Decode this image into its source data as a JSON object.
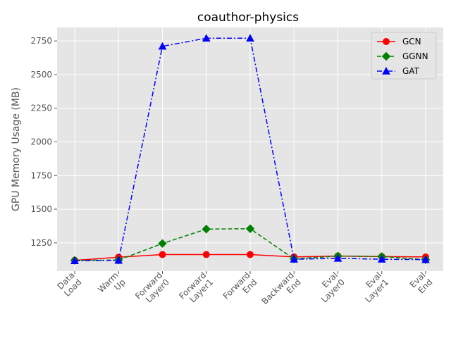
{
  "chart_data": {
    "type": "line",
    "title": "coauthor-physics",
    "xlabel": "",
    "ylabel": "GPU Memory Usage (MB)",
    "categories": [
      [
        "Data",
        "Load"
      ],
      [
        "Warm",
        "Up"
      ],
      [
        "Forward",
        "Layer0"
      ],
      [
        "Forward",
        "Layer1"
      ],
      [
        "Forward",
        "End"
      ],
      [
        "Backward",
        "End"
      ],
      [
        "Eval",
        "Layer0"
      ],
      [
        "Eval",
        "Layer1"
      ],
      [
        "Eval",
        "End"
      ]
    ],
    "ylim": [
      1040,
      2850
    ],
    "yticks": [
      1250,
      1500,
      1750,
      2000,
      2250,
      2500,
      2750
    ],
    "grid": true,
    "legend_position": "top-right",
    "series": [
      {
        "name": "GCN",
        "color": "#ff0000",
        "dash": "solid",
        "marker": "circle",
        "values": [
          1120,
          1143,
          1163,
          1163,
          1163,
          1145,
          1152,
          1148,
          1145
        ]
      },
      {
        "name": "GGNN",
        "color": "#008000",
        "dash": "dashed",
        "marker": "diamond",
        "values": [
          1120,
          1122,
          1245,
          1352,
          1355,
          1130,
          1152,
          1148,
          1125
        ]
      },
      {
        "name": "GAT",
        "color": "#0000ff",
        "dash": "dashdot",
        "marker": "triangle",
        "values": [
          1117,
          1120,
          2710,
          2770,
          2770,
          1128,
          1135,
          1128,
          1125
        ]
      }
    ]
  }
}
